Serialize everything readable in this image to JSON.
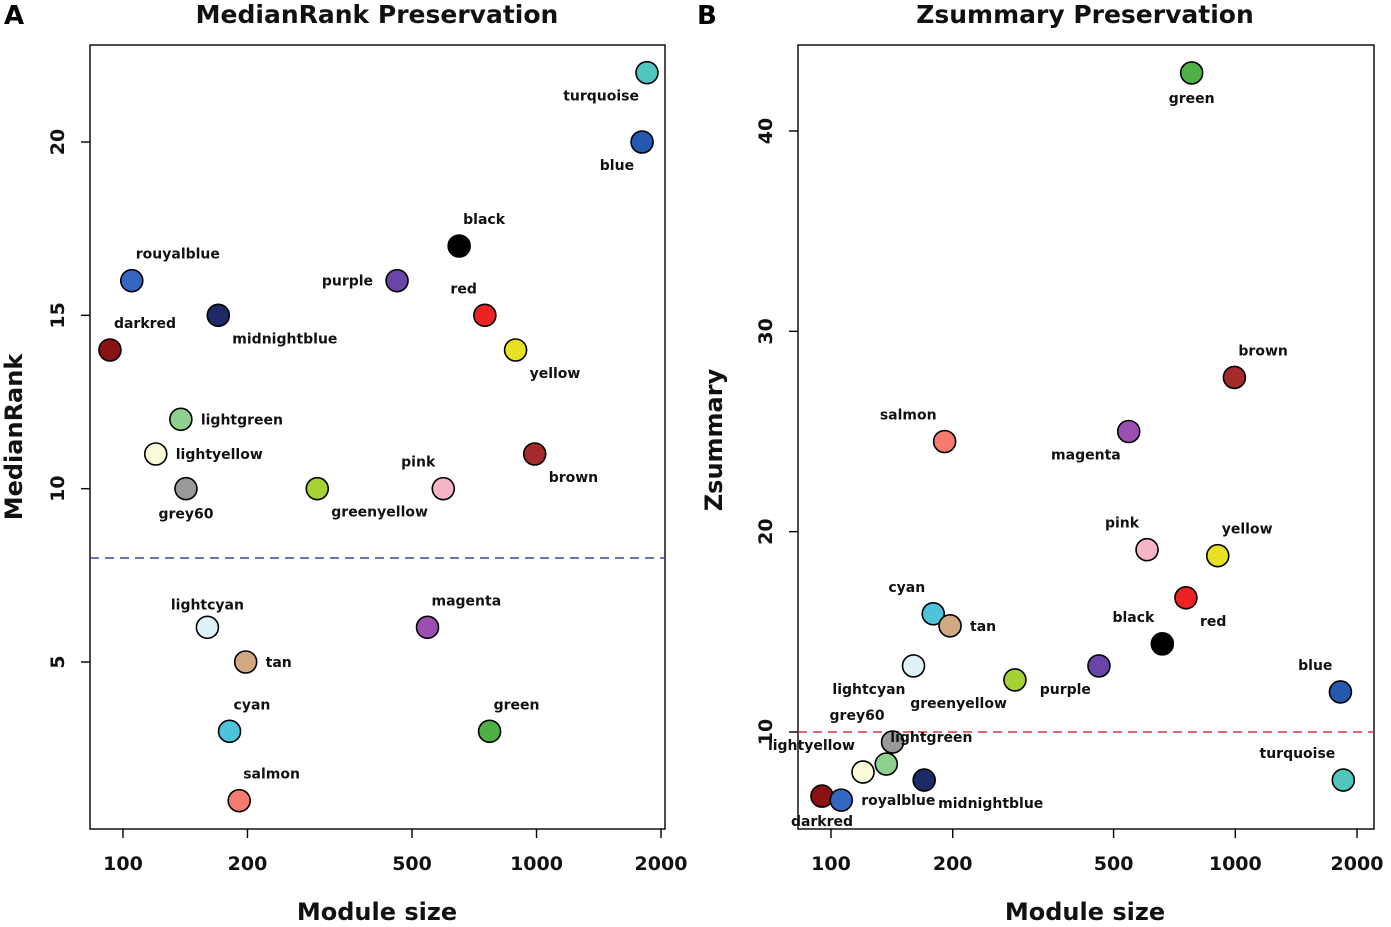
{
  "chart_data": [
    {
      "panel": "A",
      "type": "scatter",
      "title": "MedianRank Preservation",
      "xlabel": "Module size",
      "ylabel": "MedianRank",
      "xscale": "log",
      "xticks": [
        100,
        200,
        500,
        1000,
        2000
      ],
      "xtick_labels": [
        "100",
        "200",
        "500",
        "1000",
        "2000"
      ],
      "yticks": [
        5,
        10,
        15,
        20
      ],
      "ytick_labels": [
        "5",
        "10",
        "15",
        "20"
      ],
      "threshold": 8,
      "threshold_color": "#3a46b0",
      "points": [
        {
          "name": "turquoise",
          "x": 1850,
          "y": 22,
          "color": "#4fc6be",
          "label_side": "below-left"
        },
        {
          "name": "blue",
          "x": 1800,
          "y": 20,
          "color": "#2459b0",
          "label_side": "below-left"
        },
        {
          "name": "black",
          "x": 650,
          "y": 17,
          "color": "#000000",
          "label_side": "above-right"
        },
        {
          "name": "purple",
          "x": 460,
          "y": 16,
          "color": "#6a45a8",
          "label_side": "left"
        },
        {
          "name": "rouyalblue",
          "x": 105,
          "y": 16,
          "color": "#3566c2",
          "label_side": "above-right"
        },
        {
          "name": "red",
          "x": 750,
          "y": 15,
          "color": "#ee2222",
          "label_side": "above-left"
        },
        {
          "name": "midnightblue",
          "x": 170,
          "y": 15,
          "color": "#1c2a68",
          "label_side": "below-right"
        },
        {
          "name": "darkred",
          "x": 93,
          "y": 14,
          "color": "#8b1212",
          "label_side": "above-right"
        },
        {
          "name": "yellow",
          "x": 890,
          "y": 14,
          "color": "#e8e022",
          "label_side": "below-right"
        },
        {
          "name": "lightgreen",
          "x": 138,
          "y": 12,
          "color": "#8ed08e",
          "label_side": "right"
        },
        {
          "name": "lightyellow",
          "x": 120,
          "y": 11,
          "color": "#fafad8",
          "label_side": "right"
        },
        {
          "name": "brown",
          "x": 990,
          "y": 11,
          "color": "#a52a2a",
          "label_side": "below-right"
        },
        {
          "name": "grey60",
          "x": 142,
          "y": 10,
          "color": "#999999",
          "label_side": "below"
        },
        {
          "name": "greenyellow",
          "x": 295,
          "y": 10,
          "color": "#a6d132",
          "label_side": "below-right"
        },
        {
          "name": "pink",
          "x": 595,
          "y": 10,
          "color": "#f7b6c8",
          "label_side": "above-left"
        },
        {
          "name": "lightcyan",
          "x": 160,
          "y": 6,
          "color": "#dff2f8",
          "label_side": "above"
        },
        {
          "name": "magenta",
          "x": 545,
          "y": 6,
          "color": "#9b4fb0",
          "label_side": "above-right"
        },
        {
          "name": "tan",
          "x": 198,
          "y": 5,
          "color": "#d0a882",
          "label_side": "right"
        },
        {
          "name": "cyan",
          "x": 181,
          "y": 3,
          "color": "#4ec3dc",
          "label_side": "above-right"
        },
        {
          "name": "green",
          "x": 770,
          "y": 3,
          "color": "#4db148",
          "label_side": "above-right"
        },
        {
          "name": "salmon",
          "x": 191,
          "y": 1,
          "color": "#f57b70",
          "label_side": "above-right"
        }
      ]
    },
    {
      "panel": "B",
      "type": "scatter",
      "title": "Zsummary Preservation",
      "xlabel": "Module size",
      "ylabel": "Zsummary",
      "xscale": "log",
      "xticks": [
        100,
        200,
        500,
        1000,
        2000
      ],
      "xtick_labels": [
        "100",
        "200",
        "500",
        "1000",
        "2000"
      ],
      "yticks": [
        10,
        20,
        30,
        40
      ],
      "ytick_labels": [
        "10",
        "20",
        "30",
        "40"
      ],
      "threshold": 10,
      "threshold_color": "#d03a3a",
      "points": [
        {
          "name": "green",
          "x": 780,
          "y": 42.9,
          "color": "#4db148",
          "label_side": "below"
        },
        {
          "name": "brown",
          "x": 995,
          "y": 27.7,
          "color": "#a52a2a",
          "label_side": "above-right"
        },
        {
          "name": "magenta",
          "x": 545,
          "y": 25.0,
          "color": "#9b4fb0",
          "label_side": "below-left"
        },
        {
          "name": "salmon",
          "x": 191,
          "y": 24.5,
          "color": "#f57b70",
          "label_side": "above-left"
        },
        {
          "name": "pink",
          "x": 605,
          "y": 19.1,
          "color": "#f7b6c8",
          "label_side": "above-left"
        },
        {
          "name": "yellow",
          "x": 905,
          "y": 18.8,
          "color": "#e8e022",
          "label_side": "above-right"
        },
        {
          "name": "red",
          "x": 755,
          "y": 16.7,
          "color": "#ee2222",
          "label_side": "below-right"
        },
        {
          "name": "cyan",
          "x": 179,
          "y": 15.9,
          "color": "#4ec3dc",
          "label_side": "above-left"
        },
        {
          "name": "tan",
          "x": 197,
          "y": 15.3,
          "color": "#d0a882",
          "label_side": "right"
        },
        {
          "name": "black",
          "x": 660,
          "y": 14.4,
          "color": "#000000",
          "label_side": "above-left"
        },
        {
          "name": "lightcyan",
          "x": 160,
          "y": 13.3,
          "color": "#dff2f8",
          "label_side": "below-left"
        },
        {
          "name": "purple",
          "x": 460,
          "y": 13.3,
          "color": "#6a45a8",
          "label_side": "below-left"
        },
        {
          "name": "greenyellow",
          "x": 285,
          "y": 12.6,
          "color": "#a6d132",
          "label_side": "below-left"
        },
        {
          "name": "blue",
          "x": 1820,
          "y": 12.0,
          "color": "#2459b0",
          "label_side": "above-left"
        },
        {
          "name": "grey60",
          "x": 142,
          "y": 9.5,
          "color": "#999999",
          "label_side": "above-left"
        },
        {
          "name": "lightgreen",
          "x": 137,
          "y": 8.4,
          "color": "#8ed08e",
          "label_side": "above-right"
        },
        {
          "name": "lightyellow",
          "x": 120,
          "y": 8.0,
          "color": "#fafad8",
          "label_side": "above-left"
        },
        {
          "name": "midnightblue",
          "x": 170,
          "y": 7.6,
          "color": "#1c2a68",
          "label_side": "below-right"
        },
        {
          "name": "turquoise",
          "x": 1850,
          "y": 7.6,
          "color": "#4fc6be",
          "label_side": "above-left"
        },
        {
          "name": "darkred",
          "x": 95,
          "y": 6.8,
          "color": "#8b1212",
          "label_side": "below"
        },
        {
          "name": "royalblue",
          "x": 106,
          "y": 6.6,
          "color": "#3566c2",
          "label_side": "right"
        }
      ]
    }
  ]
}
